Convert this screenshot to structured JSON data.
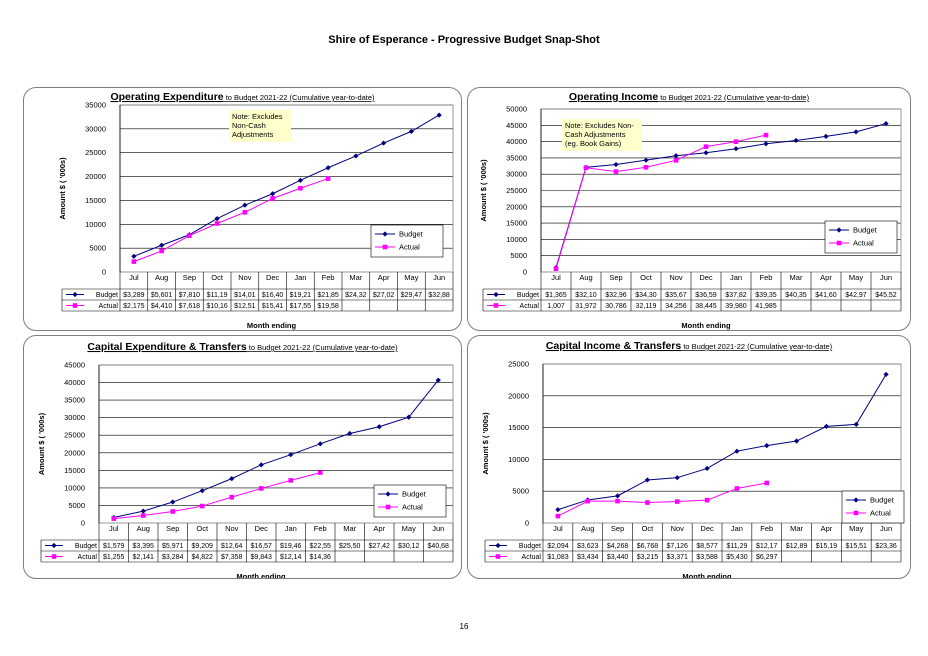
{
  "page": {
    "title": "Shire of Esperance - Progressive Budget Snap-Shot",
    "page_number": "16"
  },
  "chart_data": [
    {
      "type": "line",
      "title_main": "Operating Expenditure",
      "title_sub": " to Budget 2021-22 (Cumulative year-to-date)",
      "ylabel": "Amount $ ( '000s)",
      "xlabel": "Month ending",
      "ylim": [
        0,
        35000
      ],
      "yticks": [
        0,
        5000,
        10000,
        15000,
        20000,
        25000,
        30000,
        35000
      ],
      "grid": true,
      "legend_position": "right",
      "categories": [
        "Jul",
        "Aug",
        "Sep",
        "Oct",
        "Nov",
        "Dec",
        "Jan",
        "Feb",
        "Mar",
        "Apr",
        "May",
        "Jun"
      ],
      "note": [
        "Note: Excludes",
        "Non-Cash",
        "Adjustments"
      ],
      "series": [
        {
          "name": "Budget",
          "color": "#000080",
          "marker": "diamond",
          "values": [
            3289,
            5601,
            7810,
            11190,
            14010,
            16400,
            19210,
            21850,
            24320,
            27020,
            29470,
            32880
          ],
          "labels": [
            "$3,289",
            "$5,601",
            "$7,810",
            "$11,19",
            "$14,01",
            "$16,40",
            "$19,21",
            "$21,85",
            "$24,32",
            "$27,02",
            "$29,47",
            "$32,88"
          ]
        },
        {
          "name": "Actual",
          "color": "#ff00ff",
          "marker": "square",
          "values": [
            2175,
            4410,
            7618,
            10160,
            12510,
            15410,
            17550,
            19580,
            null,
            null,
            null,
            null
          ],
          "labels": [
            "$2,175",
            "$4,410",
            "$7,618",
            "$10,16",
            "$12,51",
            "$15,41",
            "$17,55",
            "$19,58",
            "",
            "",
            "",
            ""
          ]
        }
      ]
    },
    {
      "type": "line",
      "title_main": "Operating Income",
      "title_sub": " to Budget 2021-22  (Cumulative year-to-date)",
      "ylabel": "Amount $ ( '000s)",
      "xlabel": "Month ending",
      "ylim": [
        0,
        50000
      ],
      "yticks": [
        0,
        5000,
        10000,
        15000,
        20000,
        25000,
        30000,
        35000,
        40000,
        45000,
        50000
      ],
      "grid": true,
      "legend_position": "right",
      "categories": [
        "Jul",
        "Aug",
        "Sep",
        "Oct",
        "Nov",
        "Dec",
        "Jan",
        "Feb",
        "Mar",
        "Apr",
        "May",
        "Jun"
      ],
      "note": [
        "Note: Excludes Non-",
        "Cash Adjustments",
        "(eg. Book Gains)"
      ],
      "series": [
        {
          "name": "Budget",
          "color": "#000080",
          "marker": "diamond",
          "values": [
            1365,
            32100,
            32960,
            34300,
            35670,
            36590,
            37820,
            39350,
            40350,
            41600,
            42970,
            45520
          ],
          "labels": [
            "$1,365",
            "$32,10",
            "$32,96",
            "$34,30",
            "$35,67",
            "$36,59",
            "$37,82",
            "$39,35",
            "$40,35",
            "$41,60",
            "$42,97",
            "$45,52"
          ]
        },
        {
          "name": "Actual",
          "color": "#ff00ff",
          "marker": "square",
          "values": [
            1007,
            31972,
            30786,
            32119,
            34256,
            38445,
            39980,
            41985,
            null,
            null,
            null,
            null
          ],
          "labels": [
            "1,007",
            "31,972",
            "30,786",
            "32,119",
            "34,256",
            "38,445",
            "39,980",
            "41,985",
            "",
            "",
            "",
            ""
          ]
        }
      ]
    },
    {
      "type": "line",
      "title_main": "Capital Expenditure & Transfers",
      "title_sub": " to Budget  2021-22  (Cumulative year-to-date)",
      "ylabel": "Amount $ ( '000s)",
      "xlabel": "Month ending",
      "ylim": [
        0,
        45000
      ],
      "yticks": [
        0,
        5000,
        10000,
        15000,
        20000,
        25000,
        30000,
        35000,
        40000,
        45000
      ],
      "grid": true,
      "legend_position": "right",
      "categories": [
        "Jul",
        "Aug",
        "Sep",
        "Oct",
        "Nov",
        "Dec",
        "Jan",
        "Feb",
        "Mar",
        "Apr",
        "May",
        "Jun"
      ],
      "series": [
        {
          "name": "Budget",
          "color": "#000080",
          "marker": "diamond",
          "values": [
            1579,
            3395,
            5971,
            9209,
            12640,
            16570,
            19460,
            22550,
            25500,
            27420,
            30120,
            40680
          ],
          "labels": [
            "$1,579",
            "$3,395",
            "$5,971",
            "$9,209",
            "$12,64",
            "$16,57",
            "$19,46",
            "$22,55",
            "$25,50",
            "$27,42",
            "$30,12",
            "$40,68"
          ]
        },
        {
          "name": "Actual",
          "color": "#ff00ff",
          "marker": "square",
          "values": [
            1255,
            2141,
            3284,
            4822,
            7358,
            9843,
            12140,
            14360,
            null,
            null,
            null,
            null
          ],
          "labels": [
            "$1,255",
            "$2,141",
            "$3,284",
            "$4,822",
            "$7,358",
            "$9,843",
            "$12,14",
            "$14,36",
            "",
            "",
            "",
            ""
          ]
        }
      ]
    },
    {
      "type": "line",
      "title_main": "Capital Income & Transfers",
      "title_sub": " to Budget 2021-22 (Cumulative year-to-date)",
      "ylabel": "Amount $ ( '000s)",
      "xlabel": "Month ending",
      "ylim": [
        0,
        25000
      ],
      "yticks": [
        0,
        5000,
        10000,
        15000,
        20000,
        25000
      ],
      "grid": true,
      "legend_position": "right",
      "categories": [
        "Jul",
        "Aug",
        "Sep",
        "Oct",
        "Nov",
        "Dec",
        "Jan",
        "Feb",
        "Mar",
        "Apr",
        "May",
        "Jun"
      ],
      "series": [
        {
          "name": "Budget",
          "color": "#000080",
          "marker": "diamond",
          "values": [
            2094,
            3623,
            4268,
            6768,
            7126,
            8577,
            11290,
            12170,
            12890,
            15190,
            15510,
            23360
          ],
          "labels": [
            "$2,094",
            "$3,623",
            "$4,268",
            "$6,768",
            "$7,126",
            "$8,577",
            "$11,29",
            "$12,17",
            "$12,89",
            "$15,19",
            "$15,51",
            "$23,36"
          ]
        },
        {
          "name": "Actual",
          "color": "#ff00ff",
          "marker": "square",
          "values": [
            1083,
            3434,
            3440,
            3215,
            3371,
            3588,
            5430,
            6297,
            null,
            null,
            null,
            null
          ],
          "labels": [
            "$1,083",
            "$3,434",
            "$3,440",
            "$3,215",
            "$3,371",
            "$3,588",
            "$5,430",
            "$6,297",
            "",
            "",
            "",
            ""
          ]
        }
      ]
    }
  ]
}
